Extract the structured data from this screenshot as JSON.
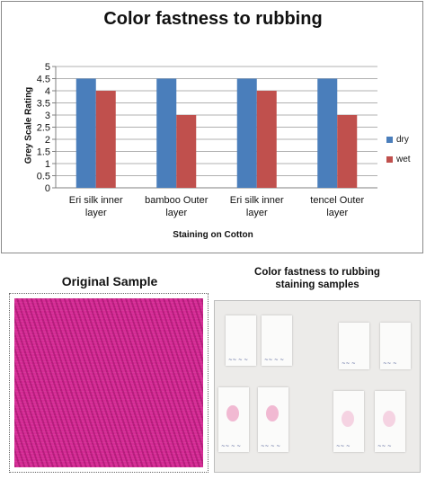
{
  "chart_data": {
    "type": "bar",
    "title": "Color fastness to rubbing",
    "xlabel": "Staining on Cotton",
    "ylabel": "Grey  Scale Rating",
    "categories": [
      [
        "Eri silk inner",
        "layer"
      ],
      [
        "bamboo Outer",
        "layer"
      ],
      [
        "Eri silk inner",
        "layer"
      ],
      [
        "tencel Outer",
        "layer"
      ]
    ],
    "series": [
      {
        "name": "dry",
        "values": [
          4.5,
          4.5,
          4.5,
          4.5
        ],
        "color": "#4a7ebb"
      },
      {
        "name": "wet",
        "values": [
          4,
          3,
          4,
          3
        ],
        "color": "#c0504d"
      }
    ],
    "ylim": [
      0,
      5
    ],
    "yticks": [
      "0",
      "0.5",
      "1",
      "1.5",
      "2",
      "2.5",
      "3",
      "3.5",
      "4",
      "4.5",
      "5"
    ],
    "grid": true,
    "legend": "right"
  },
  "panels": {
    "original_title": "Original Sample",
    "staining_title_line1": "Color fastness to rubbing",
    "staining_title_line2": "staining samples",
    "fabric_color": "#d3208f"
  }
}
